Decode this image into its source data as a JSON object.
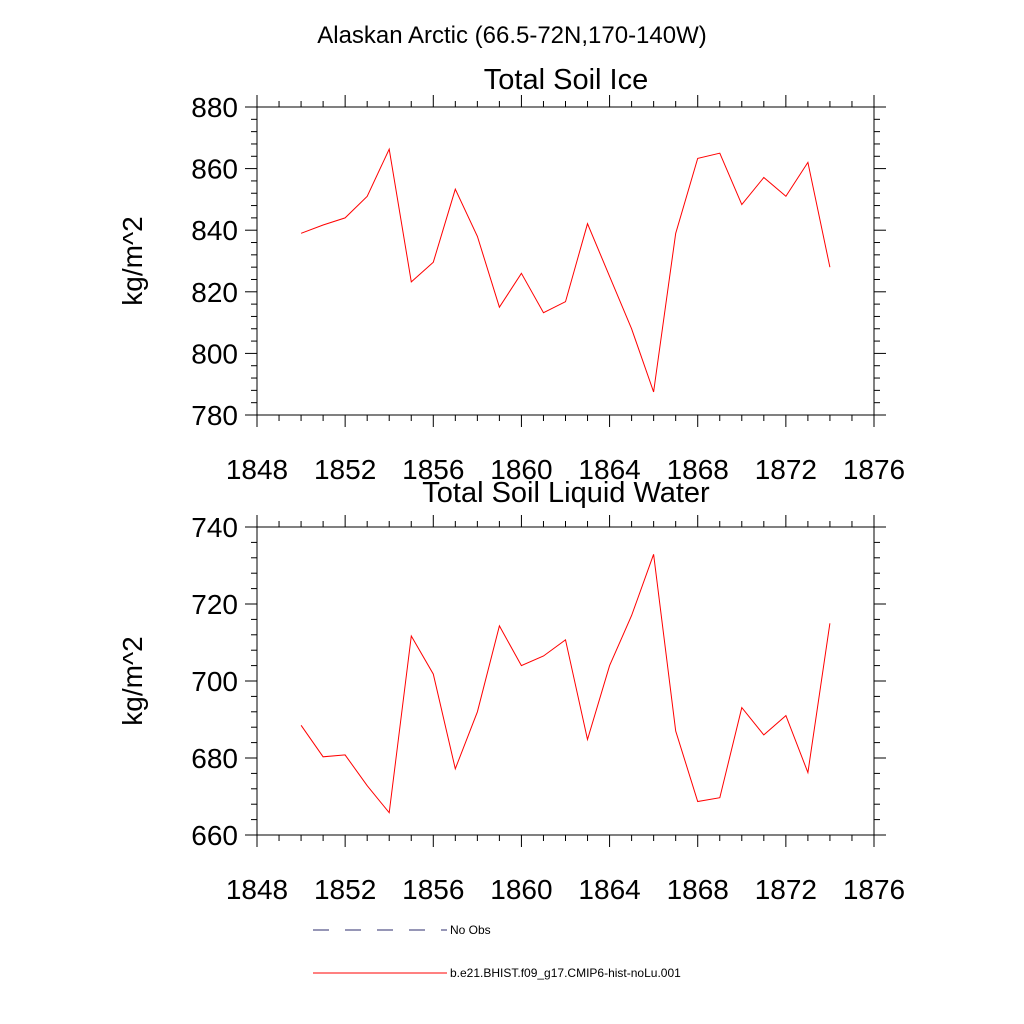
{
  "figure": {
    "title": "Alaskan Arctic (66.5-72N,170-140W)"
  },
  "colors": {
    "model_line": "#ff0000",
    "obs_line": "#2e2e6e",
    "axis": "#000000"
  },
  "chart_data": [
    {
      "type": "line",
      "title": "Total Soil Ice",
      "xlabel": "",
      "ylabel": "kg/m^2",
      "xlim": [
        1848,
        1876
      ],
      "ylim": [
        780,
        880
      ],
      "xticks": [
        1848,
        1852,
        1856,
        1860,
        1864,
        1868,
        1872,
        1876
      ],
      "xtick_labels": [
        "1848",
        "1852",
        "1856",
        "1860",
        "1864",
        "1868",
        "1872",
        "1876"
      ],
      "yticks": [
        780,
        800,
        820,
        840,
        860,
        880
      ],
      "ytick_labels": [
        "780",
        "800",
        "820",
        "840",
        "860",
        "880"
      ],
      "grid": false,
      "series": [
        {
          "name": "b.e21.BHIST.f09_g17.CMIP6-hist-noLu.001",
          "x": [
            1850,
            1851,
            1852,
            1853,
            1854,
            1855,
            1856,
            1857,
            1858,
            1859,
            1860,
            1861,
            1862,
            1863,
            1864,
            1865,
            1866,
            1867,
            1868,
            1869,
            1870,
            1871,
            1872,
            1873,
            1874
          ],
          "y": [
            839,
            841.7,
            844,
            851,
            866.3,
            823.2,
            829.6,
            853.3,
            838,
            815,
            826,
            813.2,
            816.8,
            842.1,
            825,
            808,
            787.5,
            839,
            863.3,
            865,
            848.3,
            857.1,
            851,
            862,
            828
          ]
        }
      ]
    },
    {
      "type": "line",
      "title": "Total Soil Liquid Water",
      "xlabel": "",
      "ylabel": "kg/m^2",
      "xlim": [
        1848,
        1876
      ],
      "ylim": [
        660,
        740
      ],
      "xticks": [
        1848,
        1852,
        1856,
        1860,
        1864,
        1868,
        1872,
        1876
      ],
      "xtick_labels": [
        "1848",
        "1852",
        "1856",
        "1860",
        "1864",
        "1868",
        "1872",
        "1876"
      ],
      "yticks": [
        660,
        680,
        700,
        720,
        740
      ],
      "ytick_labels": [
        "660",
        "680",
        "700",
        "720",
        "740"
      ],
      "grid": false,
      "series": [
        {
          "name": "b.e21.BHIST.f09_g17.CMIP6-hist-noLu.001",
          "x": [
            1850,
            1851,
            1852,
            1853,
            1854,
            1855,
            1856,
            1857,
            1858,
            1859,
            1860,
            1861,
            1862,
            1863,
            1864,
            1865,
            1866,
            1867,
            1868,
            1869,
            1870,
            1871,
            1872,
            1873,
            1874
          ],
          "y": [
            688.5,
            680.3,
            680.8,
            672.8,
            665.8,
            711.7,
            701.8,
            677.2,
            692,
            714.3,
            704,
            706.5,
            710.7,
            684.8,
            704,
            717,
            732.9,
            687,
            668.7,
            669.7,
            693.1,
            686,
            691,
            676.2,
            715
          ]
        }
      ]
    }
  ],
  "legend": {
    "placement": "bottom-center",
    "entries": [
      {
        "label": "No Obs",
        "style": "dashed"
      },
      {
        "label": "b.e21.BHIST.f09_g17.CMIP6-hist-noLu.001",
        "style": "solid"
      }
    ]
  }
}
